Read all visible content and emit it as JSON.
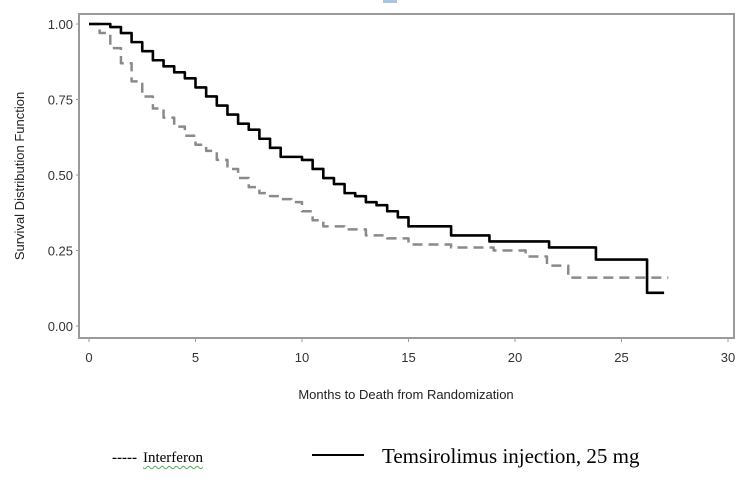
{
  "chart_data": {
    "type": "line",
    "subtype": "kaplan-meier-step",
    "title": "",
    "xlabel": "Months to Death from Randomization",
    "ylabel": "Survival Distribution Function",
    "xlim": [
      0,
      30
    ],
    "ylim": [
      0,
      1
    ],
    "xticks": [
      0,
      5,
      10,
      15,
      20,
      25,
      30
    ],
    "xtick_labels": [
      "0",
      "5",
      "10",
      "15",
      "20",
      "25",
      "30"
    ],
    "yticks": [
      0,
      0.25,
      0.5,
      0.75,
      1.0
    ],
    "ytick_labels": [
      "0.00",
      "0.25",
      "0.50",
      "0.75",
      "1.00"
    ],
    "grid": false,
    "legend_position": "bottom",
    "series": [
      {
        "name": "Interferon",
        "style": "dashed",
        "color": "#8a8a8a",
        "x": [
          0,
          0.5,
          1,
          1.5,
          2,
          2.5,
          3,
          3.5,
          4,
          4.5,
          5,
          5.5,
          6,
          6.5,
          7,
          7.5,
          8,
          8.5,
          9,
          9.5,
          10,
          10.5,
          11,
          12,
          13,
          14,
          15,
          16,
          17,
          18,
          19,
          20.5,
          21.5,
          22.5,
          27.2
        ],
        "y": [
          1.0,
          0.97,
          0.92,
          0.87,
          0.81,
          0.76,
          0.72,
          0.69,
          0.66,
          0.63,
          0.6,
          0.58,
          0.55,
          0.52,
          0.49,
          0.46,
          0.44,
          0.43,
          0.42,
          0.41,
          0.38,
          0.35,
          0.33,
          0.32,
          0.3,
          0.29,
          0.27,
          0.27,
          0.26,
          0.26,
          0.25,
          0.23,
          0.2,
          0.16,
          0.16
        ]
      },
      {
        "name": "Temsirolimus injection, 25 mg",
        "style": "solid",
        "color": "#000000",
        "x": [
          0,
          0.5,
          1,
          1.5,
          2,
          2.5,
          3,
          3.5,
          4,
          4.5,
          5,
          5.5,
          6,
          6.5,
          7,
          7.5,
          8,
          8.5,
          9,
          9.5,
          10,
          10.5,
          11,
          11.5,
          12,
          12.5,
          13,
          13.5,
          14,
          14.5,
          15,
          16,
          17,
          18.8,
          21.6,
          23.8,
          26.2,
          27.0
        ],
        "y": [
          1.0,
          1.0,
          0.99,
          0.97,
          0.94,
          0.91,
          0.88,
          0.86,
          0.84,
          0.82,
          0.79,
          0.76,
          0.73,
          0.7,
          0.67,
          0.65,
          0.62,
          0.59,
          0.56,
          0.56,
          0.55,
          0.52,
          0.49,
          0.47,
          0.44,
          0.43,
          0.41,
          0.4,
          0.38,
          0.36,
          0.33,
          0.33,
          0.3,
          0.28,
          0.26,
          0.22,
          0.11,
          0.11
        ]
      }
    ]
  },
  "legend": {
    "interferon": {
      "swatch": "-----",
      "label": "Interferon"
    },
    "temsirolimus": {
      "label": "Temsirolimus injection, 25 mg"
    }
  }
}
